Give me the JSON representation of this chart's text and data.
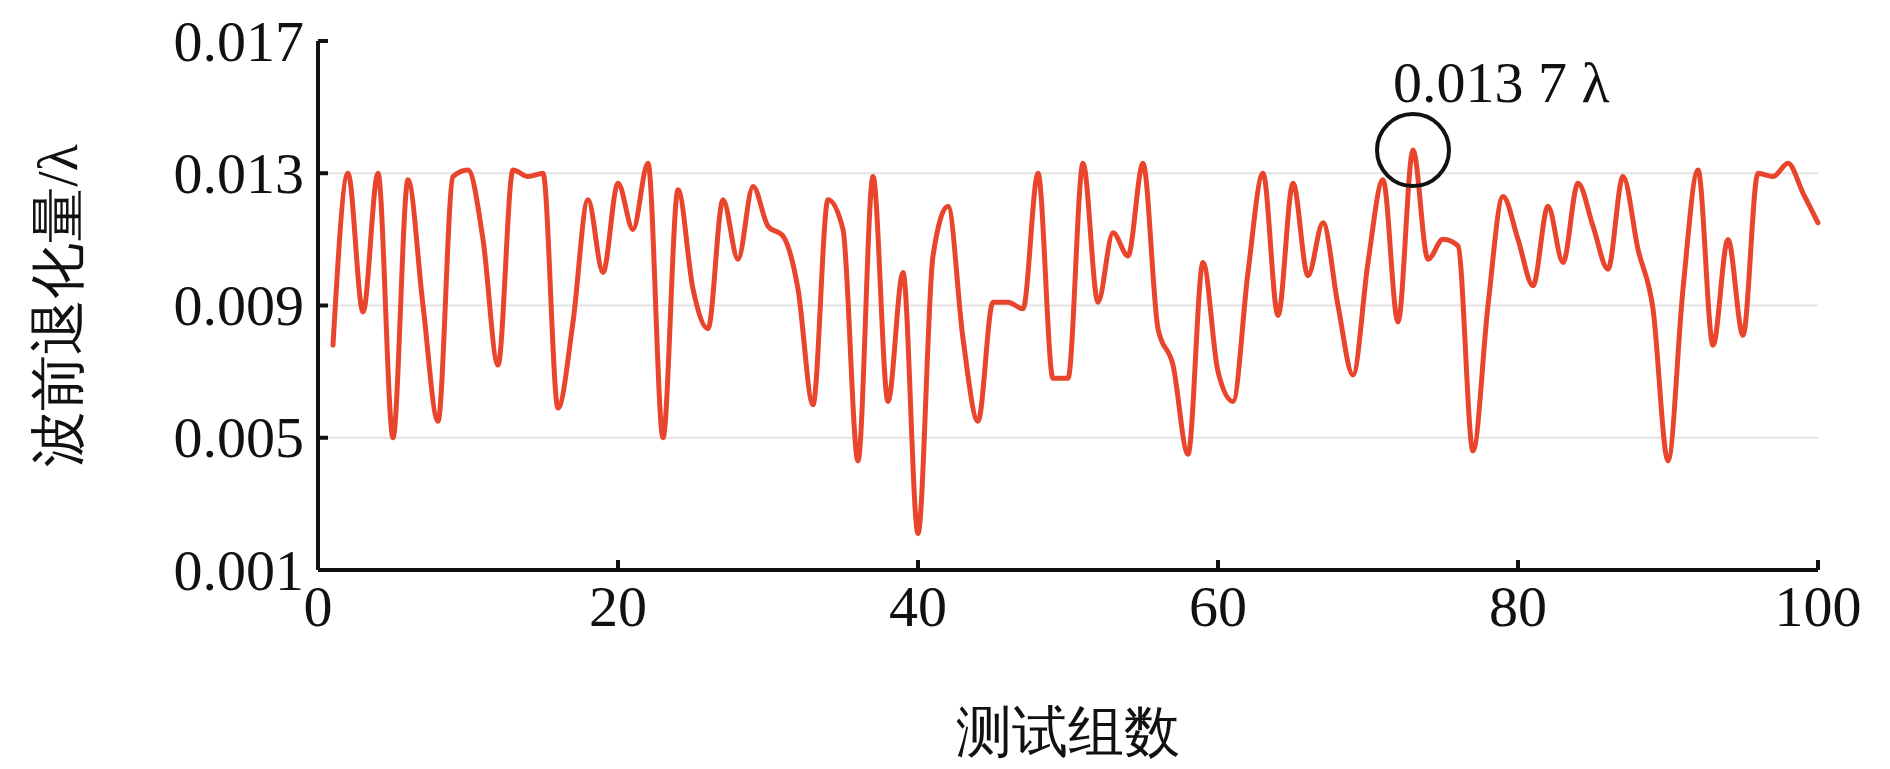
{
  "chart_data": {
    "type": "line",
    "xlabel": "测试组数",
    "ylabel": "波前退化量/λ",
    "x": [
      1,
      2,
      3,
      4,
      5,
      6,
      7,
      8,
      9,
      10,
      11,
      12,
      13,
      14,
      15,
      16,
      17,
      18,
      19,
      20,
      21,
      22,
      23,
      24,
      25,
      26,
      27,
      28,
      29,
      30,
      31,
      32,
      33,
      34,
      35,
      36,
      37,
      38,
      39,
      40,
      41,
      42,
      43,
      44,
      45,
      46,
      47,
      48,
      49,
      50,
      51,
      52,
      53,
      54,
      55,
      56,
      57,
      58,
      59,
      60,
      61,
      62,
      63,
      64,
      65,
      66,
      67,
      68,
      69,
      70,
      71,
      72,
      73,
      74,
      75,
      76,
      77,
      78,
      79,
      80,
      81,
      82,
      83,
      84,
      85,
      86,
      87,
      88,
      89,
      90,
      91,
      92,
      93,
      94,
      95,
      96,
      97,
      98,
      99,
      100
    ],
    "series": [
      {
        "color": "#e8452c",
        "values": [
          0.0078,
          0.013,
          0.0088,
          0.013,
          0.005,
          0.0128,
          0.009,
          0.0055,
          0.0129,
          0.0131,
          0.011,
          0.0072,
          0.0131,
          0.0129,
          0.013,
          0.0059,
          0.0085,
          0.0122,
          0.01,
          0.0127,
          0.0113,
          0.0133,
          0.005,
          0.0125,
          0.0095,
          0.0083,
          0.0122,
          0.0104,
          0.0126,
          0.0114,
          0.0111,
          0.0095,
          0.006,
          0.0122,
          0.0113,
          0.0043,
          0.0129,
          0.0061,
          0.01,
          0.0021,
          0.0105,
          0.012,
          0.008,
          0.0055,
          0.0091,
          0.0091,
          0.0089,
          0.013,
          0.0068,
          0.0068,
          0.0133,
          0.0091,
          0.0112,
          0.0105,
          0.0133,
          0.0083,
          0.0072,
          0.0045,
          0.0103,
          0.007,
          0.0061,
          0.01,
          0.013,
          0.0087,
          0.0127,
          0.0099,
          0.0115,
          0.009,
          0.0069,
          0.0103,
          0.0128,
          0.0085,
          0.0137,
          0.0104,
          0.011,
          0.0108,
          0.0046,
          0.009,
          0.0123,
          0.011,
          0.0096,
          0.012,
          0.0103,
          0.0127,
          0.0114,
          0.0101,
          0.0129,
          0.0107,
          0.0089,
          0.0043,
          0.0095,
          0.0131,
          0.0078,
          0.011,
          0.0081,
          0.013,
          0.0129,
          0.0133,
          0.0124,
          0.0115
        ]
      }
    ],
    "xlim": [
      0,
      100
    ],
    "xticks": [
      0,
      20,
      40,
      60,
      80,
      100
    ],
    "ylim": [
      0.001,
      0.017
    ],
    "yticks": [
      0.001,
      0.005,
      0.009,
      0.013,
      0.017
    ],
    "grid": "y",
    "marker": "none",
    "line_style": "solid",
    "annotations": [
      {
        "text": "0.013 7 λ",
        "x": 73,
        "y": 0.0137
      }
    ]
  }
}
